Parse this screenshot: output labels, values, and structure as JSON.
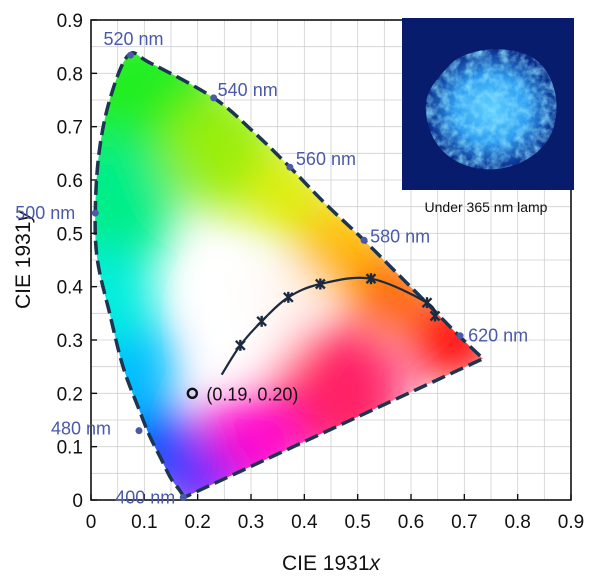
{
  "chart_data": {
    "type": "scatter",
    "xlabel_prefix": "CIE 1931",
    "xlabel_var": "x",
    "ylabel_prefix": "CIE 1931",
    "ylabel_var": "y",
    "xlim": [
      0,
      0.9
    ],
    "ylim": [
      0,
      0.9
    ],
    "x_ticks": [
      "0",
      "0.1",
      "0.2",
      "0.3",
      "0.4",
      "0.5",
      "0.6",
      "0.7",
      "0.8",
      "0.9"
    ],
    "y_ticks": [
      "0",
      "0.1",
      "0.2",
      "0.3",
      "0.4",
      "0.5",
      "0.6",
      "0.7",
      "0.8",
      "0.9"
    ],
    "grid": true,
    "locus": [
      [
        0.175,
        0.005
      ],
      [
        0.165,
        0.02
      ],
      [
        0.15,
        0.04
      ],
      [
        0.13,
        0.08
      ],
      [
        0.11,
        0.12
      ],
      [
        0.09,
        0.17
      ],
      [
        0.06,
        0.25
      ],
      [
        0.035,
        0.35
      ],
      [
        0.012,
        0.45
      ],
      [
        0.008,
        0.54
      ],
      [
        0.015,
        0.65
      ],
      [
        0.035,
        0.75
      ],
      [
        0.07,
        0.834
      ],
      [
        0.11,
        0.82
      ],
      [
        0.23,
        0.754
      ],
      [
        0.305,
        0.69
      ],
      [
        0.373,
        0.624
      ],
      [
        0.44,
        0.555
      ],
      [
        0.512,
        0.487
      ],
      [
        0.58,
        0.419
      ],
      [
        0.627,
        0.372
      ],
      [
        0.69,
        0.308
      ],
      [
        0.735,
        0.265
      ]
    ],
    "wavelength_markers": [
      {
        "label": "400 nm",
        "x": 0.173,
        "y": 0.005
      },
      {
        "label": "480 nm",
        "x": 0.09,
        "y": 0.13
      },
      {
        "label": "500 nm",
        "x": 0.008,
        "y": 0.538
      },
      {
        "label": "520 nm",
        "x": 0.074,
        "y": 0.834
      },
      {
        "label": "540 nm",
        "x": 0.23,
        "y": 0.754
      },
      {
        "label": "560 nm",
        "x": 0.373,
        "y": 0.624
      },
      {
        "label": "580 nm",
        "x": 0.512,
        "y": 0.487
      },
      {
        "label": "620 nm",
        "x": 0.692,
        "y": 0.308
      }
    ],
    "blackbody_points": [
      [
        0.28,
        0.29
      ],
      [
        0.32,
        0.335
      ],
      [
        0.37,
        0.38
      ],
      [
        0.43,
        0.405
      ],
      [
        0.525,
        0.415
      ],
      [
        0.63,
        0.37
      ],
      [
        0.645,
        0.345
      ]
    ],
    "emission_point": {
      "x": 0.19,
      "y": 0.2,
      "label": "(0.19, 0.20)"
    },
    "inset_caption": "Under 365 nm lamp"
  }
}
